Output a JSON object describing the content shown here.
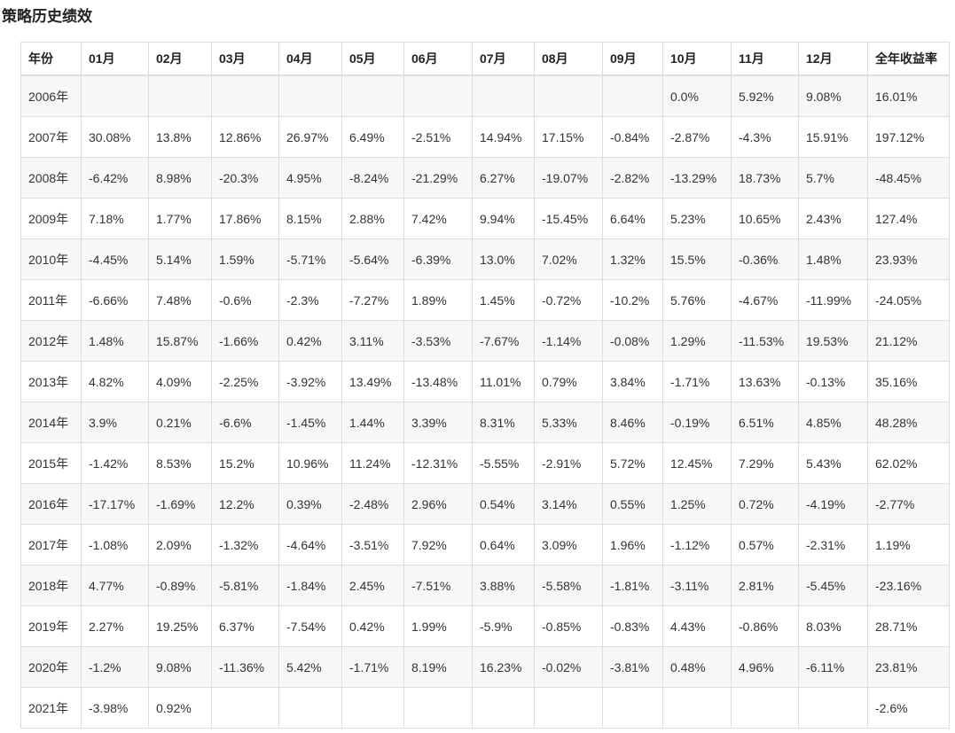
{
  "title": "策略历史绩效",
  "table": {
    "header": [
      "年份",
      "01月",
      "02月",
      "03月",
      "04月",
      "05月",
      "06月",
      "07月",
      "08月",
      "09月",
      "10月",
      "11月",
      "12月",
      "全年收益率"
    ],
    "rows": [
      [
        "2006年",
        null,
        null,
        null,
        null,
        null,
        null,
        null,
        null,
        null,
        "0.0%",
        "5.92%",
        "9.08%",
        "16.01%"
      ],
      [
        "2007年",
        "30.08%",
        "13.8%",
        "12.86%",
        "26.97%",
        "6.49%",
        "-2.51%",
        "14.94%",
        "17.15%",
        "-0.84%",
        "-2.87%",
        "-4.3%",
        "15.91%",
        "197.12%"
      ],
      [
        "2008年",
        "-6.42%",
        "8.98%",
        "-20.3%",
        "4.95%",
        "-8.24%",
        "-21.29%",
        "6.27%",
        "-19.07%",
        "-2.82%",
        "-13.29%",
        "18.73%",
        "5.7%",
        "-48.45%"
      ],
      [
        "2009年",
        "7.18%",
        "1.77%",
        "17.86%",
        "8.15%",
        "2.88%",
        "7.42%",
        "9.94%",
        "-15.45%",
        "6.64%",
        "5.23%",
        "10.65%",
        "2.43%",
        "127.4%"
      ],
      [
        "2010年",
        "-4.45%",
        "5.14%",
        "1.59%",
        "-5.71%",
        "-5.64%",
        "-6.39%",
        "13.0%",
        "7.02%",
        "1.32%",
        "15.5%",
        "-0.36%",
        "1.48%",
        "23.93%"
      ],
      [
        "2011年",
        "-6.66%",
        "7.48%",
        "-0.6%",
        "-2.3%",
        "-7.27%",
        "1.89%",
        "1.45%",
        "-0.72%",
        "-10.2%",
        "5.76%",
        "-4.67%",
        "-11.99%",
        "-24.05%"
      ],
      [
        "2012年",
        "1.48%",
        "15.87%",
        "-1.66%",
        "0.42%",
        "3.11%",
        "-3.53%",
        "-7.67%",
        "-1.14%",
        "-0.08%",
        "1.29%",
        "-11.53%",
        "19.53%",
        "21.12%"
      ],
      [
        "2013年",
        "4.82%",
        "4.09%",
        "-2.25%",
        "-3.92%",
        "13.49%",
        "-13.48%",
        "11.01%",
        "0.79%",
        "3.84%",
        "-1.71%",
        "13.63%",
        "-0.13%",
        "35.16%"
      ],
      [
        "2014年",
        "3.9%",
        "0.21%",
        "-6.6%",
        "-1.45%",
        "1.44%",
        "3.39%",
        "8.31%",
        "5.33%",
        "8.46%",
        "-0.19%",
        "6.51%",
        "4.85%",
        "48.28%"
      ],
      [
        "2015年",
        "-1.42%",
        "8.53%",
        "15.2%",
        "10.96%",
        "11.24%",
        "-12.31%",
        "-5.55%",
        "-2.91%",
        "5.72%",
        "12.45%",
        "7.29%",
        "5.43%",
        "62.02%"
      ],
      [
        "2016年",
        "-17.17%",
        "-1.69%",
        "12.2%",
        "0.39%",
        "-2.48%",
        "2.96%",
        "0.54%",
        "3.14%",
        "0.55%",
        "1.25%",
        "0.72%",
        "-4.19%",
        "-2.77%"
      ],
      [
        "2017年",
        "-1.08%",
        "2.09%",
        "-1.32%",
        "-4.64%",
        "-3.51%",
        "7.92%",
        "0.64%",
        "3.09%",
        "1.96%",
        "-1.12%",
        "0.57%",
        "-2.31%",
        "1.19%"
      ],
      [
        "2018年",
        "4.77%",
        "-0.89%",
        "-5.81%",
        "-1.84%",
        "2.45%",
        "-7.51%",
        "3.88%",
        "-5.58%",
        "-1.81%",
        "-3.11%",
        "2.81%",
        "-5.45%",
        "-23.16%"
      ],
      [
        "2019年",
        "2.27%",
        "19.25%",
        "6.37%",
        "-7.54%",
        "0.42%",
        "1.99%",
        "-5.9%",
        "-0.85%",
        "-0.83%",
        "4.43%",
        "-0.86%",
        "8.03%",
        "28.71%"
      ],
      [
        "2020年",
        "-1.2%",
        "9.08%",
        "-11.36%",
        "5.42%",
        "-1.71%",
        "8.19%",
        "16.23%",
        "-0.02%",
        "-3.81%",
        "0.48%",
        "4.96%",
        "-6.11%",
        "23.81%"
      ],
      [
        "2021年",
        "-3.98%",
        "0.92%",
        null,
        null,
        null,
        null,
        null,
        null,
        null,
        null,
        null,
        null,
        "-2.6%"
      ]
    ]
  }
}
